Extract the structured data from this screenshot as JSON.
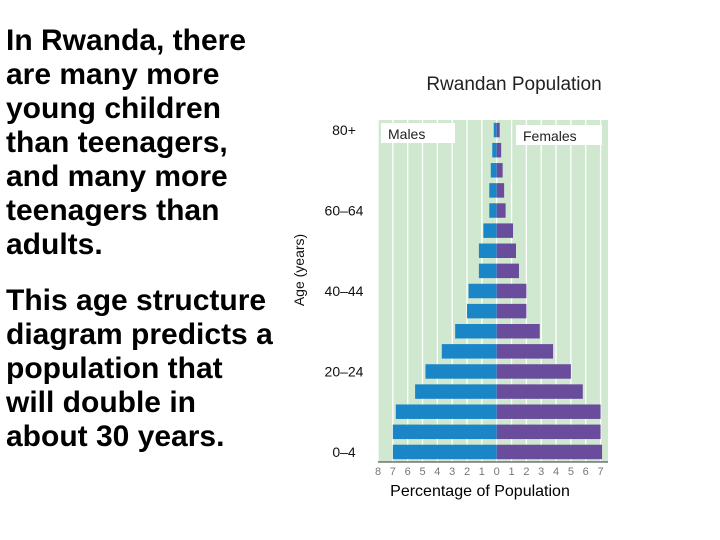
{
  "slide": {
    "paragraph1": "In Rwanda, there are many more young children than teenagers, and many more teenagers than adults.",
    "paragraph2": "This age structure diagram predicts a population that will double in about 30 years."
  },
  "chart_data": {
    "type": "bar",
    "orientation": "horizontal",
    "subtype": "population-pyramid",
    "title": "Rwandan Population",
    "xlabel": "Percentage of Population",
    "ylabel": "Age (years)",
    "x_ticks": [
      "8",
      "7",
      "6",
      "5",
      "4",
      "3",
      "2",
      "1",
      "0",
      "1",
      "2",
      "3",
      "4",
      "5",
      "6",
      "7"
    ],
    "xlim": [
      -8,
      7.5
    ],
    "age_labels_shown": [
      "80+",
      "60–64",
      "40–44",
      "20–24",
      "0–4"
    ],
    "age_groups": [
      "0–4",
      "5–9",
      "10–14",
      "15–19",
      "20–24",
      "25–29",
      "30–34",
      "35–39",
      "40–44",
      "45–49",
      "50–54",
      "55–59",
      "60–64",
      "65–69",
      "70–74",
      "75–79",
      "80+"
    ],
    "series": [
      {
        "name": "Males",
        "color": "#1a86c8",
        "values": [
          7.0,
          7.0,
          6.8,
          5.5,
          4.8,
          3.7,
          2.8,
          2.0,
          1.9,
          1.2,
          1.2,
          0.9,
          0.5,
          0.5,
          0.4,
          0.3,
          0.2
        ]
      },
      {
        "name": "Females",
        "color": "#6a4c9c",
        "values": [
          7.1,
          7.0,
          7.0,
          5.8,
          5.0,
          3.8,
          2.9,
          2.0,
          2.0,
          1.5,
          1.3,
          1.1,
          0.6,
          0.5,
          0.4,
          0.3,
          0.2
        ]
      }
    ],
    "grid": true,
    "legend": "in-plot labels, top"
  }
}
